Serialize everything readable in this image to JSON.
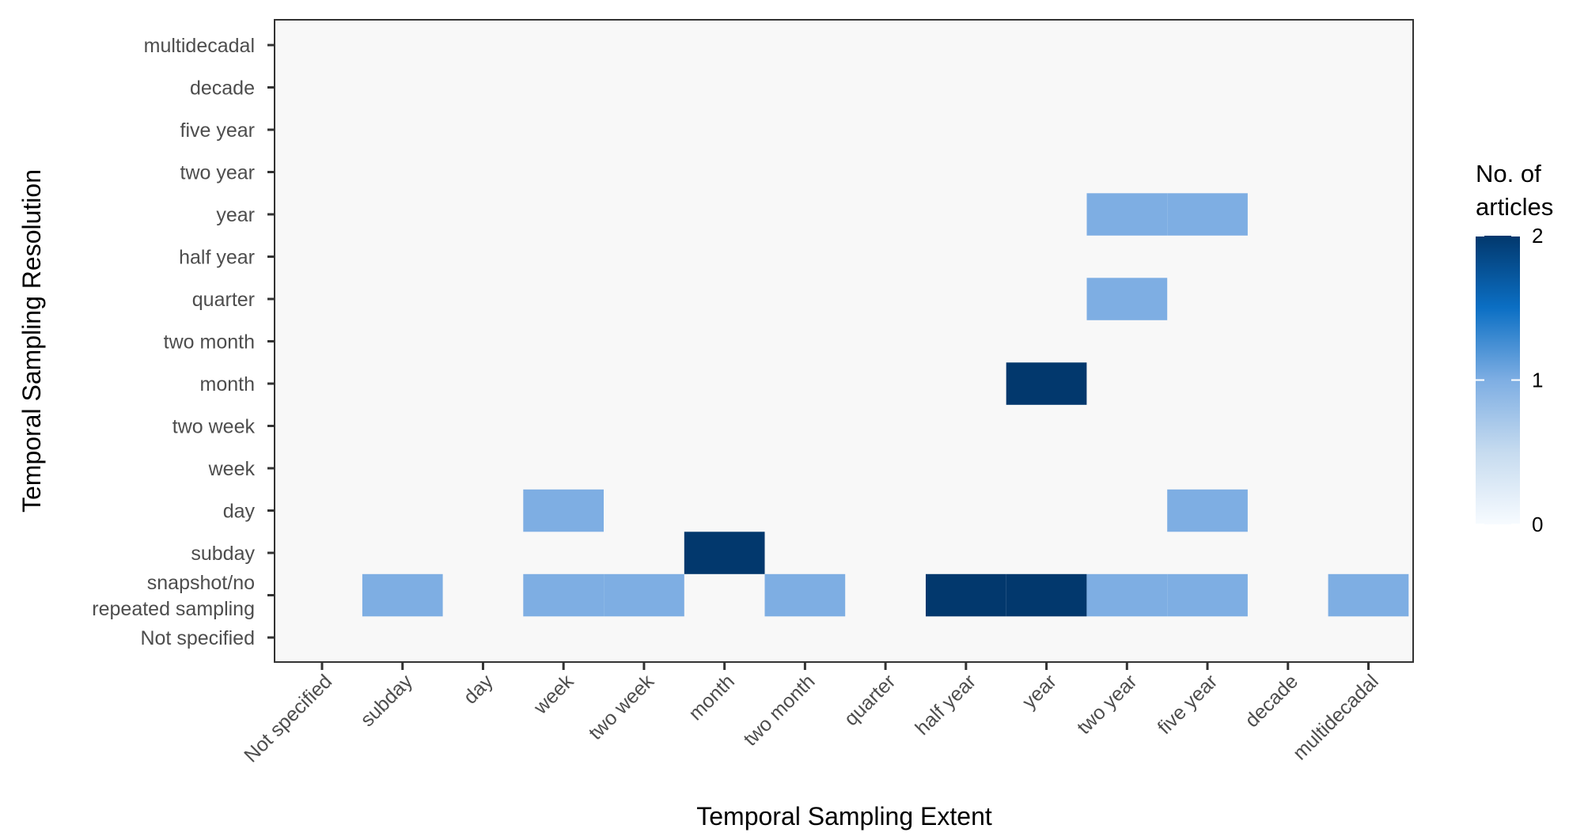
{
  "chart_data": {
    "type": "heatmap",
    "title": "",
    "xlabel": "Temporal Sampling Extent",
    "ylabel": "Temporal Sampling Resolution",
    "x_categories": [
      "Not specified",
      "subday",
      "day",
      "week",
      "two week",
      "month",
      "two month",
      "quarter",
      "half year",
      "year",
      "two year",
      "five year",
      "decade",
      "multidecadal"
    ],
    "y_categories": [
      "Not specified",
      "snapshot/no repeated sampling",
      "subday",
      "day",
      "week",
      "two week",
      "month",
      "two month",
      "quarter",
      "half year",
      "year",
      "two year",
      "five year",
      "decade",
      "multidecadal"
    ],
    "y_tick_lines": {
      "snapshot/no repeated sampling": [
        "snapshot/no",
        "repeated sampling"
      ]
    },
    "cells": [
      {
        "x": "subday",
        "y": "snapshot/no repeated sampling",
        "value": 1
      },
      {
        "x": "week",
        "y": "snapshot/no repeated sampling",
        "value": 1
      },
      {
        "x": "two week",
        "y": "snapshot/no repeated sampling",
        "value": 1
      },
      {
        "x": "two month",
        "y": "snapshot/no repeated sampling",
        "value": 1
      },
      {
        "x": "half year",
        "y": "snapshot/no repeated sampling",
        "value": 2
      },
      {
        "x": "year",
        "y": "snapshot/no repeated sampling",
        "value": 2
      },
      {
        "x": "two year",
        "y": "snapshot/no repeated sampling",
        "value": 1
      },
      {
        "x": "five year",
        "y": "snapshot/no repeated sampling",
        "value": 1
      },
      {
        "x": "multidecadal",
        "y": "snapshot/no repeated sampling",
        "value": 1
      },
      {
        "x": "month",
        "y": "subday",
        "value": 2
      },
      {
        "x": "week",
        "y": "day",
        "value": 1
      },
      {
        "x": "five year",
        "y": "day",
        "value": 1
      },
      {
        "x": "year",
        "y": "month",
        "value": 2
      },
      {
        "x": "two year",
        "y": "quarter",
        "value": 1
      },
      {
        "x": "two year",
        "y": "year",
        "value": 1
      },
      {
        "x": "five year",
        "y": "year",
        "value": 1
      }
    ],
    "legend": {
      "title_lines": [
        "No. of",
        "articles"
      ],
      "min": 0,
      "max": 2,
      "ticks": [
        0,
        1,
        2
      ],
      "position": "right"
    },
    "colors": {
      "panel_background": "#f8f8f8",
      "panel_border": "#333333",
      "low": "#f7fbff",
      "mid_low": "#c6dbef",
      "value_1": "#7eaee3",
      "mid_high": "#0b6fc4",
      "high": "#02386d"
    },
    "grid": false
  }
}
